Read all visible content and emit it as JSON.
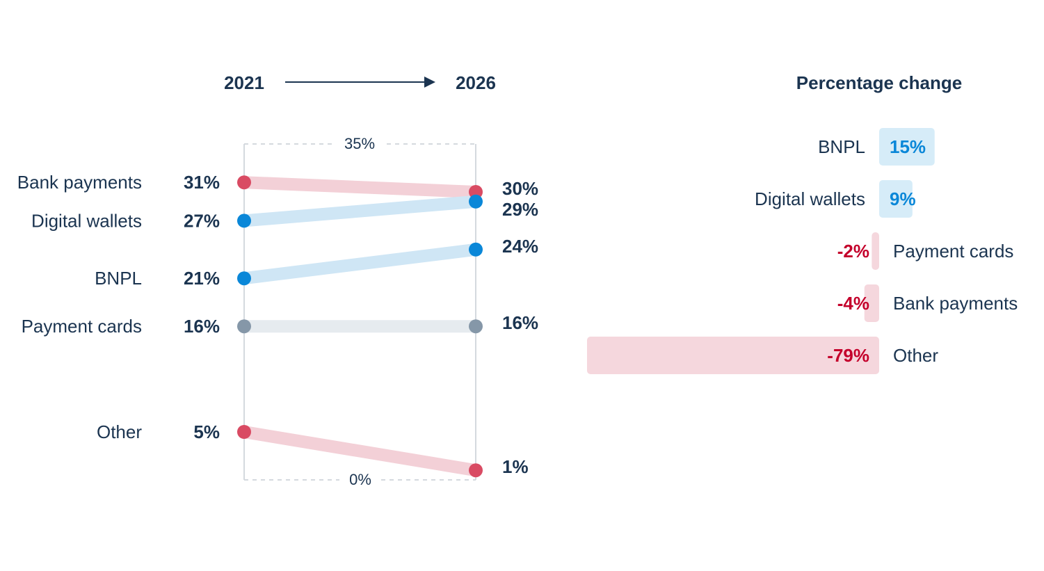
{
  "chart_data": [
    {
      "type": "line",
      "subtype": "slope",
      "start_label": "2021",
      "end_label": "2026",
      "ylim": [
        0,
        35
      ],
      "axis_top_label": "35%",
      "axis_bottom_label": "0%",
      "series": [
        {
          "name": "Bank payments",
          "start": 31,
          "end": 30,
          "start_label": "31%",
          "end_label": "30%",
          "trend": "down"
        },
        {
          "name": "Digital wallets",
          "start": 27,
          "end": 29,
          "start_label": "27%",
          "end_label": "29%",
          "trend": "up"
        },
        {
          "name": "BNPL",
          "start": 21,
          "end": 24,
          "start_label": "21%",
          "end_label": "24%",
          "trend": "up"
        },
        {
          "name": "Payment cards",
          "start": 16,
          "end": 16,
          "start_label": "16%",
          "end_label": "16%",
          "trend": "flat"
        },
        {
          "name": "Other",
          "start": 5,
          "end": 1,
          "start_label": "5%",
          "end_label": "1%",
          "trend": "down"
        }
      ]
    },
    {
      "type": "bar",
      "orientation": "horizontal",
      "title": "Percentage change",
      "categories": [
        "BNPL",
        "Digital wallets",
        "Payment cards",
        "Bank payments",
        "Other"
      ],
      "values": [
        15,
        9,
        -2,
        -4,
        -79
      ],
      "value_labels": [
        "15%",
        "9%",
        "-2%",
        "-4%",
        "-79%"
      ]
    }
  ],
  "colors": {
    "text": "#1b3450",
    "up_dot": "#0a87d8",
    "up_band": "#cfe6f5",
    "down_dot": "#d94b63",
    "down_band": "#f3d0d7",
    "flat_dot": "#8597a8",
    "flat_band": "#e6ebef",
    "pos_bar": "#d6ecf8",
    "pos_text": "#0a87d8",
    "neg_bar": "#f5d7dd",
    "neg_text": "#c4002b",
    "axis": "#d4d9de"
  }
}
